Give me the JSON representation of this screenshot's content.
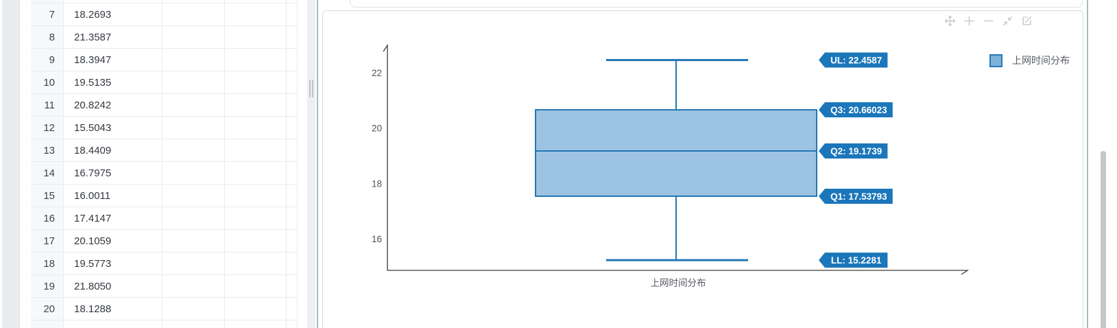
{
  "table": {
    "rows": [
      {
        "index": "7",
        "value": "18.2693"
      },
      {
        "index": "8",
        "value": "21.3587"
      },
      {
        "index": "9",
        "value": "18.3947"
      },
      {
        "index": "10",
        "value": "19.5135"
      },
      {
        "index": "11",
        "value": "20.8242"
      },
      {
        "index": "12",
        "value": "15.5043"
      },
      {
        "index": "13",
        "value": "18.4409"
      },
      {
        "index": "14",
        "value": "16.7975"
      },
      {
        "index": "15",
        "value": "16.0011"
      },
      {
        "index": "16",
        "value": "17.4147"
      },
      {
        "index": "17",
        "value": "20.1059"
      },
      {
        "index": "18",
        "value": "19.5773"
      },
      {
        "index": "19",
        "value": "21.8050"
      },
      {
        "index": "20",
        "value": "18.1288"
      }
    ]
  },
  "chart": {
    "toolbar_icons": [
      "pan-icon",
      "zoom-in-icon",
      "zoom-out-icon",
      "reset-zoom-icon",
      "edit-icon"
    ],
    "legend": {
      "label": "上网时间分布"
    }
  },
  "chart_data": {
    "type": "boxplot",
    "title": "",
    "xlabel": "上网时间分布",
    "ylabel": "",
    "legend": [
      "上网时间分布"
    ],
    "legend_position": "top-right",
    "grid": false,
    "y_ticks": [
      16,
      18,
      20,
      22
    ],
    "ylim": [
      14.9,
      23.1
    ],
    "series": [
      {
        "name": "上网时间分布",
        "stats": {
          "upper_whisker": 22.4587,
          "q3": 20.66023,
          "median": 19.1739,
          "q1": 17.53793,
          "lower_whisker": 15.2281
        }
      }
    ],
    "badges": [
      {
        "label": "UL: 22.4587",
        "value": 22.4587
      },
      {
        "label": "Q3: 20.66023",
        "value": 20.66023
      },
      {
        "label": "Q2: 19.1739",
        "value": 19.1739
      },
      {
        "label": "Q1: 17.53793",
        "value": 17.53793
      },
      {
        "label": "LL: 15.2281",
        "value": 15.2281
      }
    ],
    "colors": {
      "box_fill": "#9dc3e2",
      "box_stroke": "#2277b5",
      "badge_bg": "#1b76ba",
      "badge_text": "#ffffff",
      "axis": "#3c3c3c",
      "tick_text": "#4d5358"
    }
  }
}
